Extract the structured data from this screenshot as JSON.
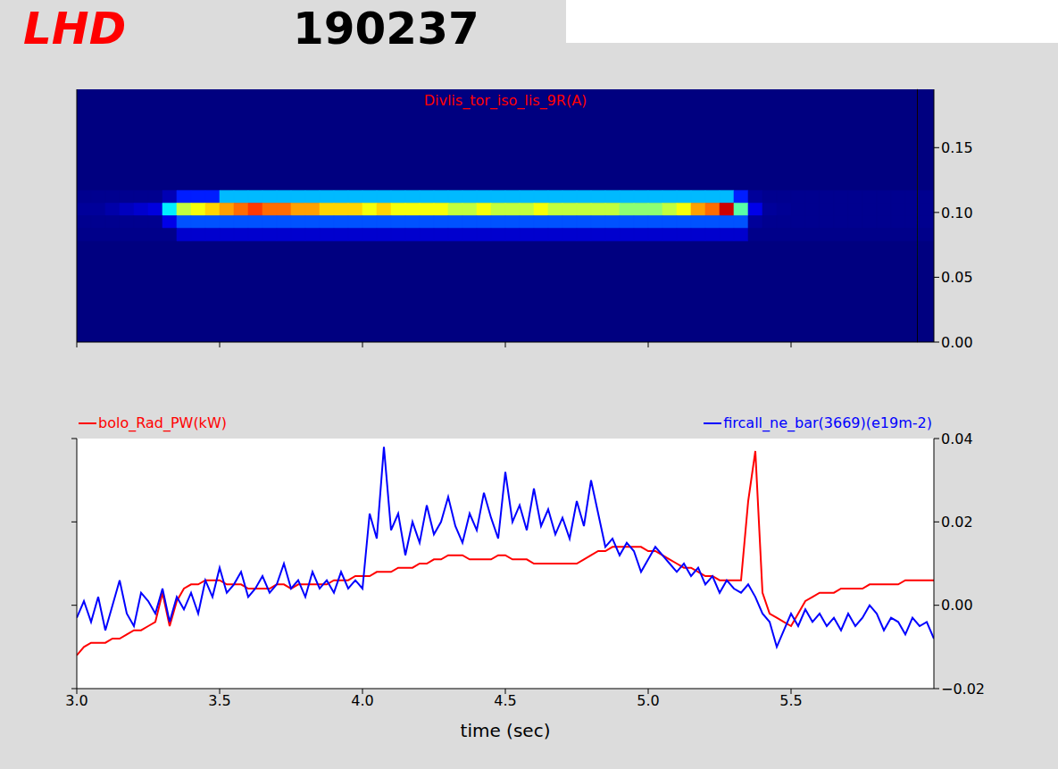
{
  "title": "LHD",
  "subtitle": "190237",
  "chart_data": [
    {
      "type": "heatmap",
      "title": "Divlis_tor_iso_lis_9R(A)",
      "xlim": [
        3,
        6
      ],
      "xticks": [
        {
          "value": 3,
          "label": "3.0"
        },
        {
          "value": 3.5,
          "label": "3.5"
        },
        {
          "value": 4,
          "label": "4.0"
        },
        {
          "value": 4.5,
          "label": "4.5"
        },
        {
          "value": 5,
          "label": "5.0"
        },
        {
          "value": 5.5,
          "label": "5.5"
        }
      ],
      "ylim": [
        0,
        20
      ],
      "tick_labels": false,
      "x_edges": [
        3,
        3.05,
        3.1,
        3.15,
        3.2,
        3.25,
        3.3,
        3.35,
        3.4,
        3.45,
        3.5,
        3.55,
        3.6,
        3.65,
        3.7,
        3.75,
        3.8,
        3.85,
        3.9,
        3.95,
        4,
        4.05,
        4.1,
        4.15,
        4.2,
        4.25,
        4.3,
        4.35,
        4.4,
        4.45,
        4.5,
        4.55,
        4.6,
        4.65,
        4.7,
        4.75,
        4.8,
        4.85,
        4.9,
        4.95,
        5,
        5.05,
        5.1,
        5.15,
        5.2,
        5.25,
        5.3,
        5.35,
        5.4,
        5.45,
        5.5,
        5.55,
        5.6,
        5.65,
        5.7,
        5.75,
        5.8,
        5.85,
        5.9,
        5.95,
        6
      ],
      "rows": [
        {
          "y0": 11,
          "y1": 12,
          "values": [
            0.003,
            0.003,
            0.003,
            0.003,
            0.003,
            0.003,
            0.01,
            0.03,
            0.03,
            0.03,
            0.06,
            0.06,
            0.06,
            0.06,
            0.06,
            0.06,
            0.06,
            0.06,
            0.06,
            0.06,
            0.06,
            0.06,
            0.06,
            0.06,
            0.06,
            0.06,
            0.06,
            0.06,
            0.06,
            0.06,
            0.06,
            0.06,
            0.06,
            0.06,
            0.06,
            0.06,
            0.06,
            0.06,
            0.06,
            0.06,
            0.06,
            0.06,
            0.06,
            0.06,
            0.06,
            0.06,
            0.03,
            0.005,
            0.003,
            0.003,
            0.003,
            0.003,
            0.003,
            0.003,
            0.003,
            0.003,
            0.003,
            0.003,
            0.003,
            0.003
          ]
        },
        {
          "y0": 10,
          "y1": 11,
          "values": [
            0.005,
            0.005,
            0.008,
            0.012,
            0.015,
            0.018,
            0.07,
            0.11,
            0.12,
            0.13,
            0.14,
            0.15,
            0.16,
            0.15,
            0.15,
            0.14,
            0.14,
            0.13,
            0.13,
            0.13,
            0.12,
            0.13,
            0.12,
            0.12,
            0.12,
            0.12,
            0.11,
            0.11,
            0.12,
            0.11,
            0.11,
            0.11,
            0.12,
            0.11,
            0.11,
            0.11,
            0.11,
            0.11,
            0.1,
            0.1,
            0.1,
            0.11,
            0.12,
            0.14,
            0.15,
            0.18,
            0.09,
            0.02,
            0.005,
            0.004,
            0.003,
            0.003,
            0.003,
            0.003,
            0.003,
            0.003,
            0.003,
            0.003,
            0.003,
            0.003
          ]
        },
        {
          "y0": 9,
          "y1": 10,
          "values": [
            0.003,
            0.003,
            0.003,
            0.003,
            0.003,
            0.003,
            0.02,
            0.04,
            0.04,
            0.04,
            0.04,
            0.04,
            0.04,
            0.04,
            0.04,
            0.04,
            0.04,
            0.04,
            0.04,
            0.04,
            0.04,
            0.04,
            0.04,
            0.04,
            0.04,
            0.04,
            0.04,
            0.04,
            0.04,
            0.04,
            0.04,
            0.04,
            0.04,
            0.04,
            0.04,
            0.04,
            0.04,
            0.04,
            0.04,
            0.04,
            0.04,
            0.04,
            0.04,
            0.04,
            0.04,
            0.04,
            0.04,
            0.005,
            0.003,
            0.003,
            0.003,
            0.003,
            0.003,
            0.003,
            0.003,
            0.003,
            0.003,
            0.003,
            0.003,
            0.003
          ]
        },
        {
          "y0": 8,
          "y1": 9,
          "values": [
            0.002,
            0.002,
            0.002,
            0.002,
            0.002,
            0.002,
            0.002,
            0.015,
            0.015,
            0.015,
            0.015,
            0.015,
            0.015,
            0.015,
            0.015,
            0.015,
            0.015,
            0.015,
            0.015,
            0.015,
            0.015,
            0.015,
            0.015,
            0.015,
            0.015,
            0.015,
            0.015,
            0.015,
            0.015,
            0.015,
            0.015,
            0.015,
            0.015,
            0.015,
            0.015,
            0.015,
            0.015,
            0.015,
            0.015,
            0.015,
            0.015,
            0.015,
            0.015,
            0.015,
            0.015,
            0.015,
            0.015,
            0.002,
            0.002,
            0.002,
            0.002,
            0.002,
            0.002,
            0.002,
            0.002,
            0.002,
            0.002,
            0.002,
            0.002,
            0.002
          ]
        }
      ],
      "colorbar": {
        "range": [
          0,
          0.195
        ],
        "ticks": [
          {
            "value": 0,
            "label": "0.00"
          },
          {
            "value": 0.05,
            "label": "0.05"
          },
          {
            "value": 0.1,
            "label": "0.10"
          },
          {
            "value": 0.15,
            "label": "0.15"
          }
        ]
      }
    },
    {
      "type": "line",
      "xlabel": "time (sec)",
      "legend": "top",
      "xlim": [
        3,
        6
      ],
      "xticks": [
        {
          "value": 3,
          "label": "3.0"
        },
        {
          "value": 3.5,
          "label": "3.5"
        },
        {
          "value": 4,
          "label": "4.0"
        },
        {
          "value": 4.5,
          "label": "4.5"
        },
        {
          "value": 5,
          "label": "5.0"
        },
        {
          "value": 5.5,
          "label": "5.5"
        }
      ],
      "ylim": [
        -0.02,
        0.04
      ],
      "yticks": [
        {
          "value": -0.02,
          "label": "−0.02"
        },
        {
          "value": 0,
          "label": "0.00"
        },
        {
          "value": 0.02,
          "label": "0.02"
        },
        {
          "value": 0.04,
          "label": "0.04"
        }
      ],
      "x": [
        3,
        3.025,
        3.05,
        3.075,
        3.1,
        3.125,
        3.15,
        3.175,
        3.2,
        3.225,
        3.25,
        3.275,
        3.3,
        3.325,
        3.35,
        3.375,
        3.4,
        3.425,
        3.45,
        3.475,
        3.5,
        3.525,
        3.55,
        3.575,
        3.6,
        3.625,
        3.65,
        3.675,
        3.7,
        3.725,
        3.75,
        3.775,
        3.8,
        3.825,
        3.85,
        3.875,
        3.9,
        3.925,
        3.95,
        3.975,
        4,
        4.025,
        4.05,
        4.075,
        4.1,
        4.125,
        4.15,
        4.175,
        4.2,
        4.225,
        4.25,
        4.275,
        4.3,
        4.325,
        4.35,
        4.375,
        4.4,
        4.425,
        4.45,
        4.475,
        4.5,
        4.525,
        4.55,
        4.575,
        4.6,
        4.625,
        4.65,
        4.675,
        4.7,
        4.725,
        4.75,
        4.775,
        4.8,
        4.825,
        4.85,
        4.875,
        4.9,
        4.925,
        4.95,
        4.975,
        5,
        5.025,
        5.05,
        5.075,
        5.1,
        5.125,
        5.15,
        5.175,
        5.2,
        5.225,
        5.25,
        5.275,
        5.3,
        5.325,
        5.35,
        5.375,
        5.4,
        5.425,
        5.45,
        5.475,
        5.5,
        5.525,
        5.55,
        5.575,
        5.6,
        5.625,
        5.65,
        5.675,
        5.7,
        5.725,
        5.75,
        5.775,
        5.8,
        5.825,
        5.85,
        5.875,
        5.9,
        5.925,
        5.95,
        5.975,
        6
      ],
      "series": [
        {
          "name": "bolo_Rad_PW(kW)",
          "color": "#ff0000",
          "values": [
            -0.012,
            -0.01,
            -0.009,
            -0.009,
            -0.009,
            -0.008,
            -0.008,
            -0.007,
            -0.006,
            -0.006,
            -0.005,
            -0.004,
            0.003,
            -0.005,
            0.001,
            0.004,
            0.005,
            0.005,
            0.006,
            0.006,
            0.006,
            0.005,
            0.005,
            0.005,
            0.004,
            0.004,
            0.004,
            0.004,
            0.005,
            0.005,
            0.004,
            0.005,
            0.005,
            0.005,
            0.005,
            0.005,
            0.006,
            0.006,
            0.006,
            0.007,
            0.007,
            0.007,
            0.008,
            0.008,
            0.008,
            0.009,
            0.009,
            0.009,
            0.01,
            0.01,
            0.011,
            0.011,
            0.012,
            0.012,
            0.012,
            0.011,
            0.011,
            0.011,
            0.011,
            0.012,
            0.012,
            0.011,
            0.011,
            0.011,
            0.01,
            0.01,
            0.01,
            0.01,
            0.01,
            0.01,
            0.01,
            0.011,
            0.012,
            0.013,
            0.013,
            0.014,
            0.014,
            0.014,
            0.014,
            0.014,
            0.013,
            0.013,
            0.012,
            0.011,
            0.01,
            0.009,
            0.009,
            0.008,
            0.007,
            0.007,
            0.006,
            0.006,
            0.006,
            0.006,
            0.025,
            0.037,
            0.003,
            -0.002,
            -0.003,
            -0.004,
            -0.005,
            -0.002,
            0.001,
            0.002,
            0.003,
            0.003,
            0.003,
            0.004,
            0.004,
            0.004,
            0.004,
            0.005,
            0.005,
            0.005,
            0.005,
            0.005,
            0.006,
            0.006,
            0.006,
            0.006,
            0.006
          ]
        },
        {
          "name": "fircall_ne_bar(3669)(e19m-2)",
          "color": "#0000ff",
          "values": [
            -0.003,
            0.001,
            -0.004,
            0.002,
            -0.006,
            0.0,
            0.006,
            -0.002,
            -0.005,
            0.003,
            0.001,
            -0.002,
            0.004,
            -0.004,
            0.002,
            -0.001,
            0.003,
            -0.002,
            0.006,
            0.002,
            0.009,
            0.003,
            0.005,
            0.008,
            0.002,
            0.004,
            0.007,
            0.003,
            0.005,
            0.01,
            0.004,
            0.006,
            0.002,
            0.008,
            0.004,
            0.006,
            0.003,
            0.008,
            0.004,
            0.006,
            0.004,
            0.022,
            0.016,
            0.038,
            0.018,
            0.022,
            0.012,
            0.02,
            0.015,
            0.024,
            0.017,
            0.02,
            0.026,
            0.019,
            0.015,
            0.022,
            0.018,
            0.027,
            0.021,
            0.016,
            0.032,
            0.02,
            0.024,
            0.018,
            0.028,
            0.019,
            0.023,
            0.017,
            0.021,
            0.016,
            0.025,
            0.019,
            0.03,
            0.022,
            0.014,
            0.016,
            0.012,
            0.015,
            0.013,
            0.008,
            0.011,
            0.014,
            0.012,
            0.01,
            0.008,
            0.01,
            0.007,
            0.009,
            0.005,
            0.007,
            0.003,
            0.006,
            0.004,
            0.003,
            0.005,
            0.002,
            -0.002,
            -0.004,
            -0.01,
            -0.006,
            -0.002,
            -0.005,
            -0.001,
            -0.004,
            -0.002,
            -0.005,
            -0.003,
            -0.006,
            -0.002,
            -0.005,
            -0.003,
            0.0,
            -0.002,
            -0.006,
            -0.003,
            -0.004,
            -0.007,
            -0.003,
            -0.005,
            -0.004,
            -0.008
          ]
        }
      ]
    }
  ]
}
